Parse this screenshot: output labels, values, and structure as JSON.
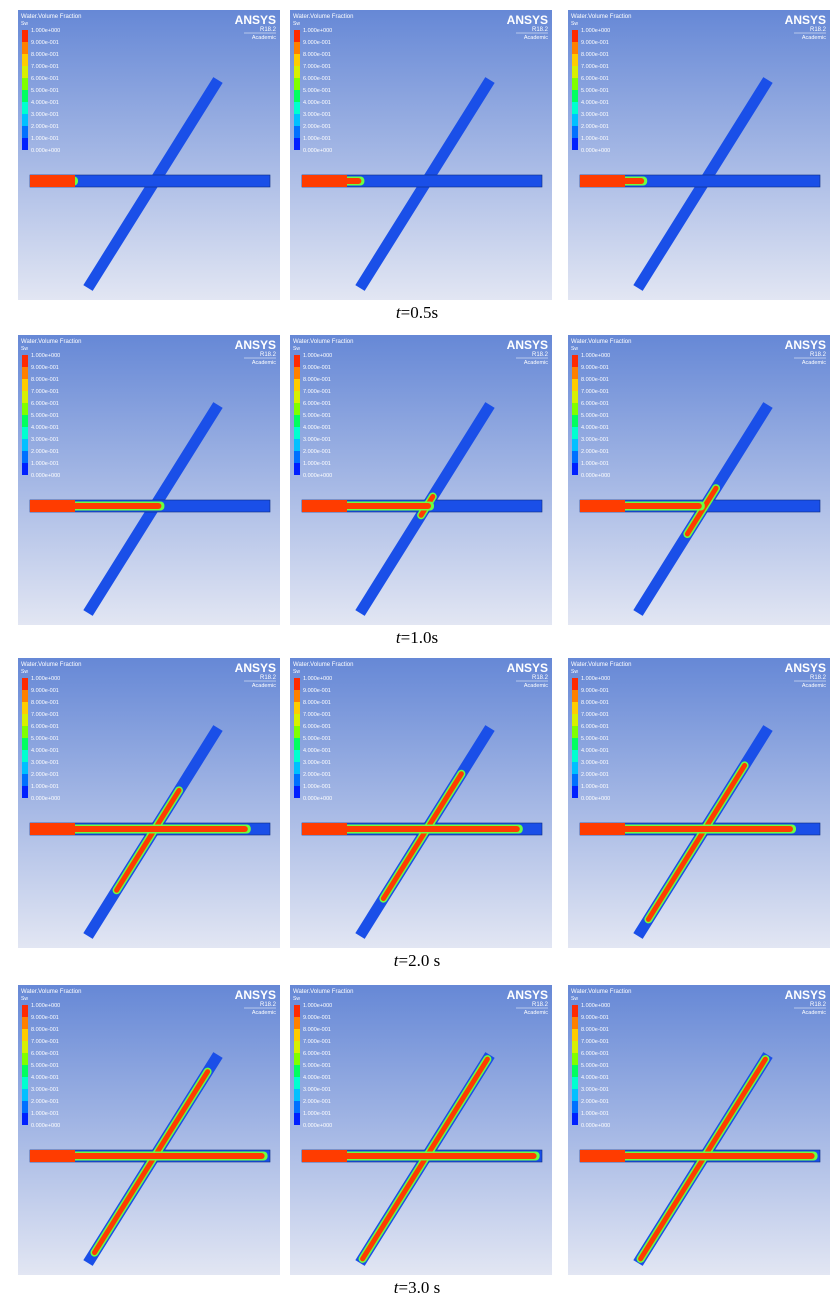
{
  "panel": {
    "title": "Water.Volume Fraction",
    "variable": "Sw",
    "legend_labels": [
      "1.000e+000",
      "9.000e-001",
      "8.000e-001",
      "7.000e-001",
      "6.000e-001",
      "5.000e-001",
      "4.000e-001",
      "3.000e-001",
      "2.000e-001",
      "1.000e-001",
      "0.000e+000"
    ],
    "brand": "ANSYS",
    "version": "R18.2",
    "license": "Academic"
  },
  "captions": [
    {
      "var": "t",
      "text": "=0.5s"
    },
    {
      "var": "t",
      "text": "=1.0s"
    },
    {
      "var": "t",
      "text": "=2.0 s"
    },
    {
      "var": "t",
      "text": "=3.0 s"
    }
  ]
}
